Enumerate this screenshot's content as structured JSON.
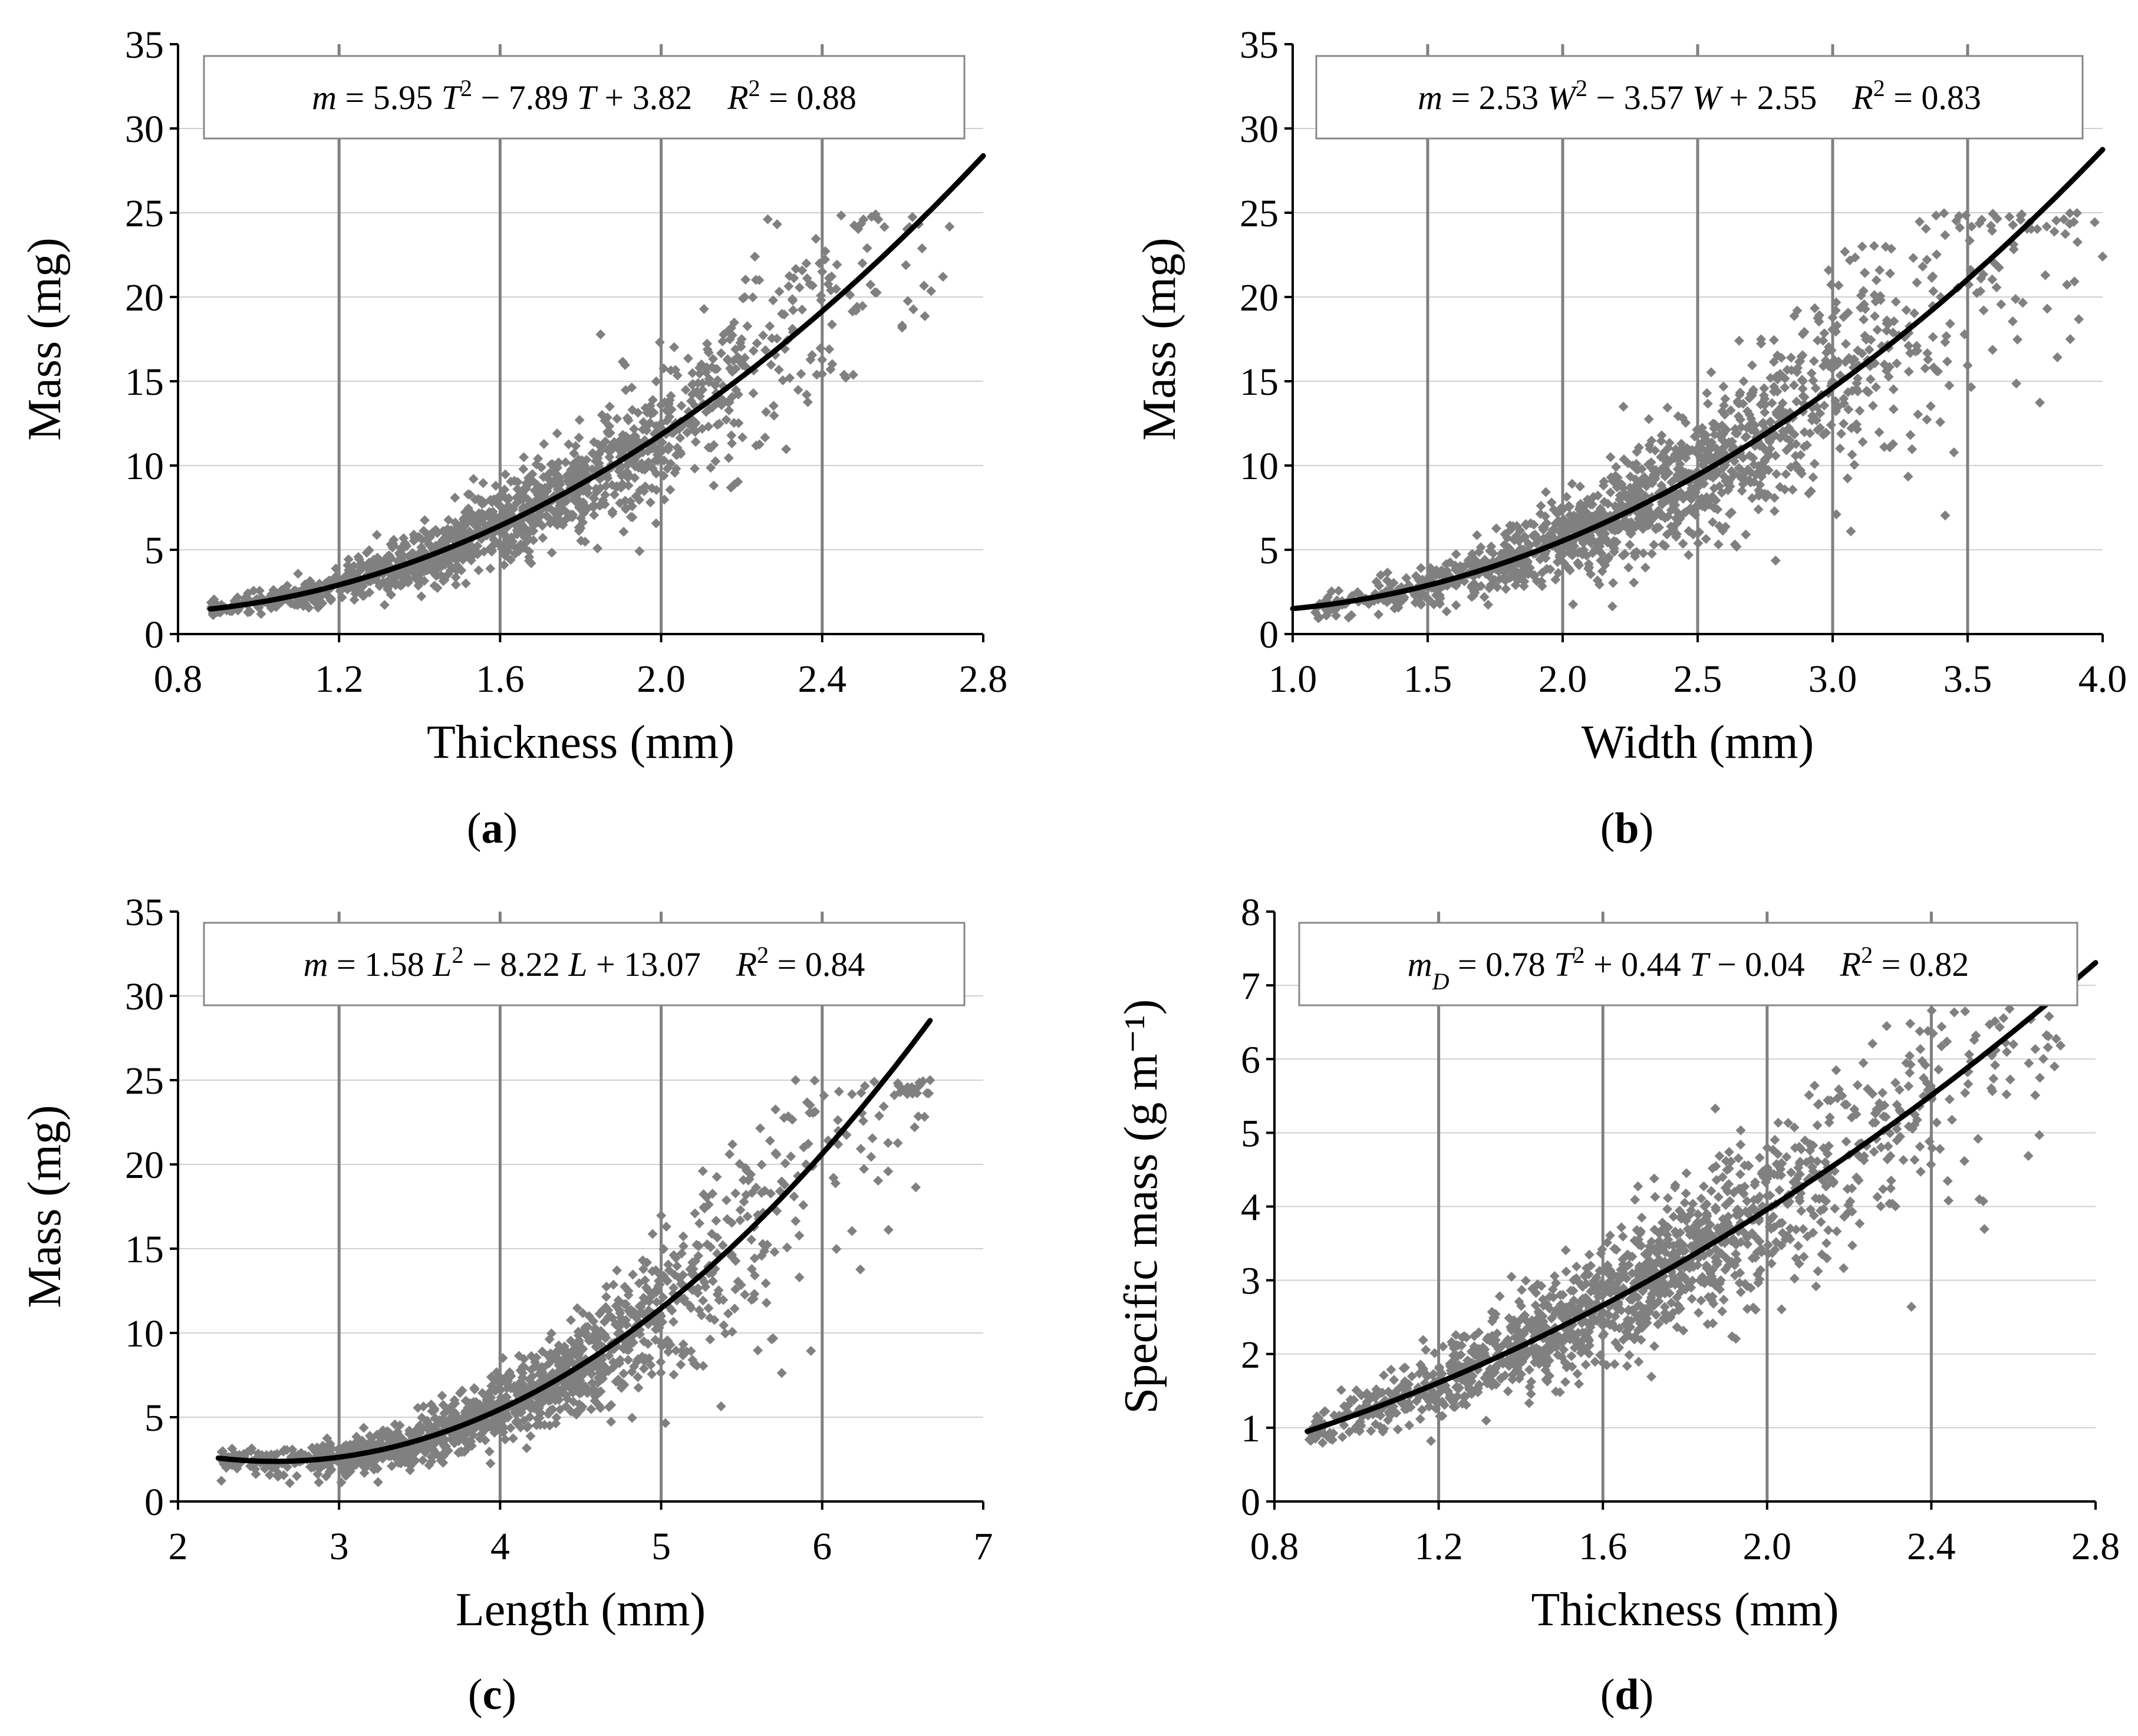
{
  "figure": {
    "panels": [
      {
        "id": "a",
        "label_open": "(",
        "label_letter": "a",
        "label_close": ")",
        "equation": {
          "var": "m",
          "prefix": "",
          "a": 5.95,
          "b": -7.89,
          "c": 3.82,
          "x": "T",
          "r2": 0.88,
          "parts": [
            "m",
            " = 5.95 ",
            "T",
            "2",
            " − 7.89 ",
            "T",
            " + 3.82",
            "R",
            "2",
            " = 0.88"
          ]
        }
      },
      {
        "id": "b",
        "label_open": "(",
        "label_letter": "b",
        "label_close": ")",
        "equation": {
          "var": "m",
          "a": 2.53,
          "b": -3.57,
          "c": 2.55,
          "x": "W",
          "r2": 0.83,
          "parts": [
            "m",
            " = 2.53 ",
            "W",
            "2",
            " − 3.57 ",
            "W",
            " + 2.55",
            "R",
            "2",
            " = 0.83"
          ]
        }
      },
      {
        "id": "c",
        "label_open": "(",
        "label_letter": "c",
        "label_close": ")",
        "equation": {
          "var": "m",
          "a": 1.58,
          "b": -8.22,
          "c": 13.07,
          "x": "L",
          "r2": 0.84,
          "parts": [
            "m",
            " = 1.58 ",
            "L",
            "2",
            " − 8.22 ",
            "L",
            " + 13.07",
            "R",
            "2",
            " = 0.84"
          ]
        }
      },
      {
        "id": "d",
        "label_open": "(",
        "label_letter": "d",
        "label_close": ")",
        "equation": {
          "var": "m_D",
          "a": 0.78,
          "b": 0.44,
          "c": -0.04,
          "x": "T",
          "r2": 0.82,
          "parts": [
            "m",
            "D",
            " = 0.78 ",
            "T",
            "2",
            " + 0.44 ",
            "T",
            " − 0.04",
            "R",
            "2",
            " = 0.82"
          ]
        }
      }
    ]
  },
  "colors": {
    "points": "#808080",
    "fit_line": "#000000",
    "grid_major": "#808080",
    "grid_minor": "#d0d0d0",
    "axis": "#000000"
  },
  "chart_data": [
    {
      "type": "scatter",
      "panel": "a",
      "title": "",
      "xlabel": "Thickness (mm)",
      "ylabel": "Mass (mg)",
      "xlim": [
        0.8,
        2.8
      ],
      "ylim": [
        0,
        35
      ],
      "x_ticks": [
        0.8,
        1.2,
        1.6,
        2.0,
        2.4,
        2.8
      ],
      "x_tick_labels": [
        "0.8",
        "1.2",
        "1.6",
        "2.0",
        "2.4",
        "2.8"
      ],
      "y_ticks": [
        0,
        5,
        10,
        15,
        20,
        25,
        30,
        35
      ],
      "y_tick_labels": [
        "0",
        "5",
        "10",
        "15",
        "20",
        "25",
        "30",
        "35"
      ],
      "vertical_grid": [
        1.2,
        1.6,
        2.0,
        2.4
      ],
      "horizontal_grid": [
        5,
        10,
        15,
        20,
        25,
        30
      ],
      "series": [
        {
          "name": "observations",
          "kind": "points",
          "approx_count": 1400,
          "x_range": [
            0.88,
            2.72
          ],
          "y_range": [
            0.8,
            25.0
          ],
          "relative_spread": 0.18,
          "sample_points": [
            [
              0.9,
              1.6
            ],
            [
              1.0,
              2.0
            ],
            [
              1.1,
              2.5
            ],
            [
              1.2,
              3.0
            ],
            [
              1.3,
              3.6
            ],
            [
              1.4,
              4.5
            ],
            [
              1.5,
              5.4
            ],
            [
              1.6,
              6.8
            ],
            [
              1.7,
              8.0
            ],
            [
              1.8,
              9.5
            ],
            [
              2.0,
              12.5
            ],
            [
              2.1,
              16.0
            ],
            [
              2.2,
              17.5
            ],
            [
              2.3,
              19.0
            ],
            [
              2.4,
              21.5
            ],
            [
              2.5,
              22.0
            ],
            [
              2.7,
              21.2
            ]
          ]
        },
        {
          "name": "fit",
          "kind": "quadratic",
          "coefficients": [
            5.95,
            -7.89,
            3.82
          ],
          "x_start": 0.88,
          "x_end": 2.8
        }
      ]
    },
    {
      "type": "scatter",
      "panel": "b",
      "title": "",
      "xlabel": "Width (mm)",
      "ylabel": "Mass (mg)",
      "xlim": [
        1.0,
        4.0
      ],
      "ylim": [
        0,
        35
      ],
      "x_ticks": [
        1.0,
        1.5,
        2.0,
        2.5,
        3.0,
        3.5,
        4.0
      ],
      "x_tick_labels": [
        "1.0",
        "1.5",
        "2.0",
        "2.5",
        "3.0",
        "3.5",
        "4.0"
      ],
      "y_ticks": [
        0,
        5,
        10,
        15,
        20,
        25,
        30,
        35
      ],
      "y_tick_labels": [
        "0",
        "5",
        "10",
        "15",
        "20",
        "25",
        "30",
        "35"
      ],
      "vertical_grid": [
        1.5,
        2.0,
        2.5,
        3.0,
        3.5
      ],
      "horizontal_grid": [
        5,
        10,
        15,
        20,
        25,
        30
      ],
      "series": [
        {
          "name": "observations",
          "kind": "points",
          "approx_count": 1400,
          "x_range": [
            1.08,
            4.0
          ],
          "y_range": [
            0.8,
            25.0
          ],
          "relative_spread": 0.22,
          "sample_points": [
            [
              1.1,
              1.8
            ],
            [
              1.3,
              2.2
            ],
            [
              1.5,
              2.8
            ],
            [
              1.7,
              3.8
            ],
            [
              1.9,
              4.8
            ],
            [
              2.0,
              5.5
            ],
            [
              2.2,
              6.5
            ],
            [
              2.4,
              8.5
            ],
            [
              2.6,
              10.0
            ],
            [
              2.8,
              12.5
            ],
            [
              3.0,
              15.0
            ],
            [
              3.2,
              18.0
            ],
            [
              3.4,
              20.0
            ],
            [
              3.6,
              22.0
            ],
            [
              3.88,
              17.5
            ],
            [
              4.0,
              22.4
            ]
          ]
        },
        {
          "name": "fit",
          "kind": "quadratic",
          "coefficients": [
            2.53,
            -3.57,
            2.55
          ],
          "x_start": 1.0,
          "x_end": 4.0
        }
      ]
    },
    {
      "type": "scatter",
      "panel": "c",
      "title": "",
      "xlabel": "Length (mm)",
      "ylabel": "Mass (mg)",
      "xlim": [
        2,
        7
      ],
      "ylim": [
        0,
        35
      ],
      "x_ticks": [
        2,
        3,
        4,
        5,
        6,
        7
      ],
      "x_tick_labels": [
        "2",
        "3",
        "4",
        "5",
        "6",
        "7"
      ],
      "y_ticks": [
        0,
        5,
        10,
        15,
        20,
        25,
        30,
        35
      ],
      "y_tick_labels": [
        "0",
        "5",
        "10",
        "15",
        "20",
        "25",
        "30",
        "35"
      ],
      "vertical_grid": [
        3,
        4,
        5,
        6
      ],
      "horizontal_grid": [
        5,
        10,
        15,
        20,
        25,
        30
      ],
      "series": [
        {
          "name": "observations",
          "kind": "points",
          "approx_count": 1400,
          "x_range": [
            2.25,
            6.67
          ],
          "y_range": [
            1.0,
            25.0
          ],
          "relative_spread": 0.2,
          "sample_points": [
            [
              2.3,
              2.0
            ],
            [
              2.5,
              2.4
            ],
            [
              2.8,
              2.5
            ],
            [
              3.0,
              2.8
            ],
            [
              3.3,
              3.4
            ],
            [
              3.6,
              4.5
            ],
            [
              3.9,
              5.5
            ],
            [
              4.2,
              7.0
            ],
            [
              4.5,
              8.0
            ],
            [
              4.8,
              9.0
            ],
            [
              5.0,
              11.0
            ],
            [
              5.3,
              14.0
            ],
            [
              5.6,
              17.0
            ],
            [
              5.9,
              20.0
            ],
            [
              6.1,
              22.0
            ],
            [
              6.67,
              25.0
            ]
          ]
        },
        {
          "name": "fit",
          "kind": "quadratic",
          "coefficients": [
            1.58,
            -8.22,
            13.07
          ],
          "x_start": 2.25,
          "x_end": 6.67
        }
      ]
    },
    {
      "type": "scatter",
      "panel": "d",
      "title": "",
      "xlabel": "Thickness (mm)",
      "ylabel": "Specific mass (g m⁻¹)",
      "xlim": [
        0.8,
        2.8
      ],
      "ylim": [
        0,
        8
      ],
      "x_ticks": [
        0.8,
        1.2,
        1.6,
        2.0,
        2.4,
        2.8
      ],
      "x_tick_labels": [
        "0.8",
        "1.2",
        "1.6",
        "2.0",
        "2.4",
        "2.8"
      ],
      "y_ticks": [
        0,
        1,
        2,
        3,
        4,
        5,
        6,
        7,
        8
      ],
      "y_tick_labels": [
        "0",
        "1",
        "2",
        "3",
        "4",
        "5",
        "6",
        "7",
        "8"
      ],
      "vertical_grid": [
        1.2,
        1.6,
        2.0,
        2.4
      ],
      "horizontal_grid": [
        1,
        2,
        3,
        4,
        5,
        6,
        7
      ],
      "series": [
        {
          "name": "observations",
          "kind": "points",
          "approx_count": 1400,
          "x_range": [
            0.88,
            2.72
          ],
          "y_range": [
            0.4,
            6.7
          ],
          "relative_spread": 0.15,
          "sample_points": [
            [
              0.9,
              1.0
            ],
            [
              1.0,
              1.2
            ],
            [
              1.1,
              1.4
            ],
            [
              1.2,
              1.6
            ],
            [
              1.3,
              1.9
            ],
            [
              1.4,
              2.2
            ],
            [
              1.5,
              2.5
            ],
            [
              1.6,
              2.8
            ],
            [
              1.7,
              3.2
            ],
            [
              1.8,
              3.4
            ],
            [
              1.9,
              3.7
            ],
            [
              2.0,
              4.0
            ],
            [
              2.2,
              4.7
            ],
            [
              2.4,
              5.5
            ],
            [
              2.6,
              6.2
            ],
            [
              2.7,
              5.9
            ]
          ]
        },
        {
          "name": "fit",
          "kind": "quadratic",
          "coefficients": [
            0.78,
            0.44,
            -0.04
          ],
          "x_start": 0.88,
          "x_end": 2.8
        }
      ]
    }
  ]
}
